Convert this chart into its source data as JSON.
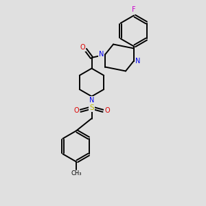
{
  "background_color": "#e0e0e0",
  "bond_color": "#000000",
  "N_color": "#0000ee",
  "O_color": "#dd0000",
  "S_color": "#bbbb00",
  "F_color": "#cc00cc",
  "line_width": 1.4,
  "figsize": [
    3.0,
    3.0
  ],
  "dpi": 100,
  "xlim": [
    0,
    10
  ],
  "ylim": [
    0,
    10
  ]
}
